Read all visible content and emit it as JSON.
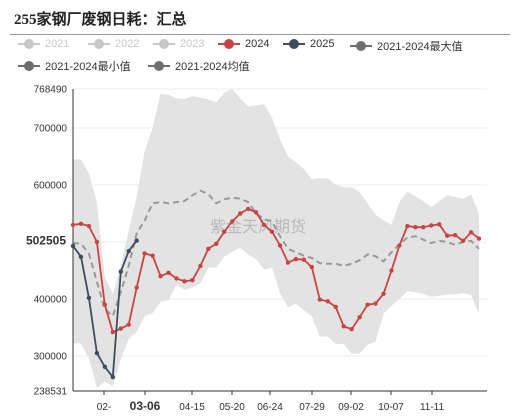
{
  "title": "255家钢厂废钢日耗：汇总",
  "watermark": "紫金天风期货",
  "colors": {
    "band": "#e3e3e3",
    "avg": "#999999",
    "s2024": "#c94444",
    "s2025": "#3d4d5e",
    "disabled": "#c8c8c8"
  },
  "legend": [
    {
      "label": "2021",
      "color": "#c8c8c8",
      "enabled": false,
      "style": "dot"
    },
    {
      "label": "2022",
      "color": "#c8c8c8",
      "enabled": false,
      "style": "dot"
    },
    {
      "label": "2023",
      "color": "#c8c8c8",
      "enabled": false,
      "style": "dot"
    },
    {
      "label": "2024",
      "color": "#c94444",
      "enabled": true,
      "style": "dot"
    },
    {
      "label": "2025",
      "color": "#3d4d5e",
      "enabled": true,
      "style": "dot"
    },
    {
      "label": "2021-2024最大值",
      "color": "#6e6e6e",
      "enabled": true,
      "style": "dot"
    },
    {
      "label": "2021-2024最小值",
      "color": "#6e6e6e",
      "enabled": true,
      "style": "dot"
    },
    {
      "label": "2021-2024均值",
      "color": "#6e6e6e",
      "enabled": true,
      "style": "dot"
    }
  ],
  "chart_data": {
    "type": "line",
    "title": "255家钢厂废钢日耗：汇总",
    "ylim": [
      238531,
      768490
    ],
    "y_ticks": [
      "238531",
      "300000",
      "400000",
      "500000",
      "600000",
      "700000",
      "768490"
    ],
    "x_ticks": [
      "02-",
      "03-06",
      "04-15",
      "05-20",
      "06-24",
      "07-29",
      "09-02",
      "10-07",
      "11-11"
    ],
    "highlight_x_tick": "03-06",
    "highlight_value": "502505",
    "x_range": [
      0,
      52
    ],
    "series": [
      {
        "name": "2024",
        "x": [
          0,
          1,
          2,
          3,
          4,
          5,
          6,
          7,
          8,
          9,
          10,
          11,
          12,
          13,
          14,
          15,
          16,
          17,
          18,
          19,
          20,
          21,
          22,
          23,
          24,
          25,
          26,
          27,
          28,
          29,
          30,
          31,
          32,
          33,
          34,
          35,
          36,
          37,
          38,
          39,
          40,
          41,
          42,
          43,
          44,
          45,
          46,
          47,
          48,
          49,
          50,
          51
        ],
        "values": [
          530000,
          532000,
          528000,
          500000,
          390000,
          342000,
          348000,
          355000,
          420000,
          480000,
          476000,
          440000,
          446000,
          436000,
          431000,
          433000,
          458000,
          488000,
          497000,
          518000,
          536000,
          550000,
          558000,
          552000,
          530000,
          518000,
          494000,
          464000,
          470000,
          469000,
          456000,
          399000,
          396000,
          386000,
          352000,
          347000,
          368000,
          390000,
          392000,
          409000,
          450000,
          494000,
          528000,
          526000,
          526000,
          529000,
          531000,
          511000,
          512000,
          502000,
          517000,
          506000
        ]
      },
      {
        "name": "2025",
        "x": [
          0,
          1,
          2,
          3,
          4,
          5,
          6,
          7,
          8
        ],
        "values": [
          493000,
          474000,
          402000,
          305000,
          281000,
          263000,
          448000,
          484000,
          502505
        ]
      },
      {
        "name": "2021-2024最大值",
        "x": [
          0,
          1,
          2,
          3,
          4,
          5,
          6,
          7,
          8,
          9,
          10,
          11,
          12,
          13,
          14,
          15,
          16,
          17,
          18,
          19,
          20,
          21,
          22,
          23,
          24,
          25,
          26,
          27,
          28,
          29,
          30,
          31,
          32,
          33,
          34,
          35,
          36,
          37,
          38,
          39,
          40,
          41,
          42,
          43,
          44,
          45,
          46,
          47,
          48,
          49,
          50,
          51
        ],
        "values": [
          645000,
          645000,
          620000,
          570000,
          440000,
          408000,
          458000,
          520000,
          580000,
          660000,
          700000,
          760000,
          758000,
          752000,
          751000,
          756000,
          753000,
          750000,
          745000,
          762000,
          768490,
          752000,
          738000,
          740000,
          742000,
          718000,
          680000,
          650000,
          640000,
          628000,
          610000,
          612000,
          612000,
          600000,
          596000,
          596000,
          588000,
          568000,
          548000,
          538000,
          530000,
          570000,
          588000,
          580000,
          572000,
          561000,
          572000,
          582000,
          579000,
          576000,
          583000,
          550000
        ]
      },
      {
        "name": "2021-2024最小值",
        "x": [
          0,
          1,
          2,
          3,
          4,
          5,
          6,
          7,
          8,
          9,
          10,
          11,
          12,
          13,
          14,
          15,
          16,
          17,
          18,
          19,
          20,
          21,
          22,
          23,
          24,
          25,
          26,
          27,
          28,
          29,
          30,
          31,
          32,
          33,
          34,
          35,
          36,
          37,
          38,
          39,
          40,
          41,
          42,
          43,
          44,
          45,
          46,
          47,
          48,
          49,
          50,
          51
        ],
        "values": [
          322000,
          322000,
          296000,
          244000,
          255000,
          247000,
          294000,
          330000,
          342000,
          370000,
          375000,
          395000,
          398000,
          425000,
          416000,
          420000,
          427000,
          455000,
          455000,
          474000,
          483000,
          490000,
          478000,
          470000,
          452000,
          455000,
          410000,
          385000,
          392000,
          380000,
          370000,
          334000,
          334000,
          321000,
          321000,
          304000,
          304000,
          320000,
          325000,
          374000,
          388000,
          400000,
          414000,
          412000,
          409000,
          404000,
          406000,
          408000,
          408000,
          410000,
          407000,
          374000
        ]
      },
      {
        "name": "2021-2024均值",
        "x": [
          0,
          1,
          2,
          3,
          4,
          5,
          6,
          7,
          8,
          9,
          10,
          11,
          12,
          13,
          14,
          15,
          16,
          17,
          18,
          19,
          20,
          21,
          22,
          23,
          24,
          25,
          26,
          27,
          28,
          29,
          30,
          31,
          32,
          33,
          34,
          35,
          36,
          37,
          38,
          39,
          40,
          41,
          42,
          43,
          44,
          45,
          46,
          47,
          48,
          49,
          50,
          51
        ],
        "values": [
          498000,
          497000,
          480000,
          430000,
          382000,
          370000,
          412000,
          458000,
          515000,
          538000,
          568000,
          570000,
          568000,
          570000,
          572000,
          582000,
          590000,
          584000,
          568000,
          575000,
          578000,
          576000,
          570000,
          550000,
          540000,
          536000,
          510000,
          488000,
          482000,
          476000,
          472000,
          463000,
          462000,
          462000,
          458000,
          462000,
          468000,
          478000,
          475000,
          466000,
          482000,
          496000,
          508000,
          510000,
          504000,
          498000,
          502000,
          500000,
          495000,
          500000,
          502000,
          488000
        ]
      }
    ]
  }
}
